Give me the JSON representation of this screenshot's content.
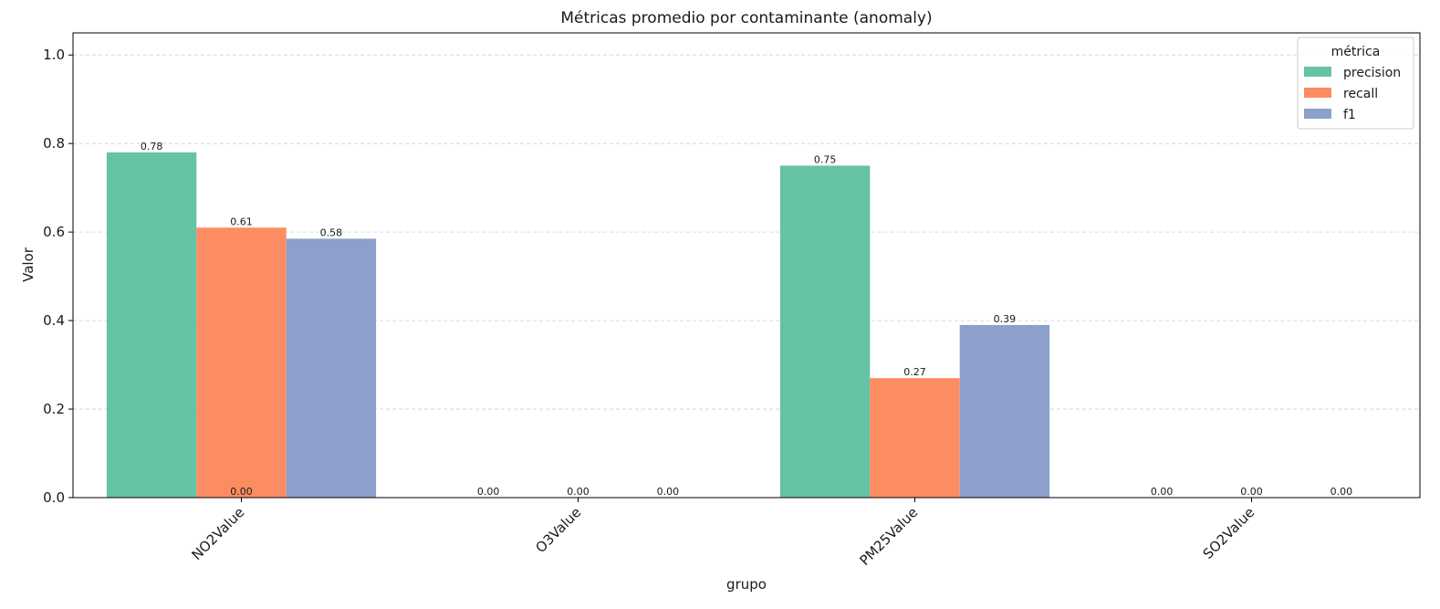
{
  "chart_data": {
    "type": "bar",
    "title": "Métricas promedio por contaminante (anomaly)",
    "xlabel": "grupo",
    "ylabel": "Valor",
    "ylim": [
      0,
      1.05
    ],
    "yticks": [
      "0.0",
      "0.2",
      "0.4",
      "0.6",
      "0.8",
      "1.0"
    ],
    "grid": true,
    "categories": [
      "NO2Value",
      "O3Value",
      "PM25Value",
      "SO2Value"
    ],
    "series": [
      {
        "name": "precision",
        "color": "#66c2a5",
        "values": [
          0.78,
          0.0,
          0.75,
          0.0
        ]
      },
      {
        "name": "recall",
        "color": "#fc8d62",
        "values": [
          0.61,
          0.0,
          0.27,
          0.0
        ]
      },
      {
        "name": "f1",
        "color": "#8da0cb",
        "values": [
          0.585,
          0.0,
          0.39,
          0.0
        ]
      }
    ],
    "bar_labels": [
      [
        "0.78",
        "0.00",
        "0.75",
        "0.00"
      ],
      [
        "0.61",
        "0.00",
        "0.27",
        "0.00"
      ],
      [
        "0.58",
        "0.00",
        "0.39",
        "0.00"
      ]
    ],
    "extra_labels": [
      {
        "category": "NO2Value",
        "text": "0.00"
      }
    ],
    "legend": {
      "title": "métrica",
      "placement": "top-right"
    }
  }
}
